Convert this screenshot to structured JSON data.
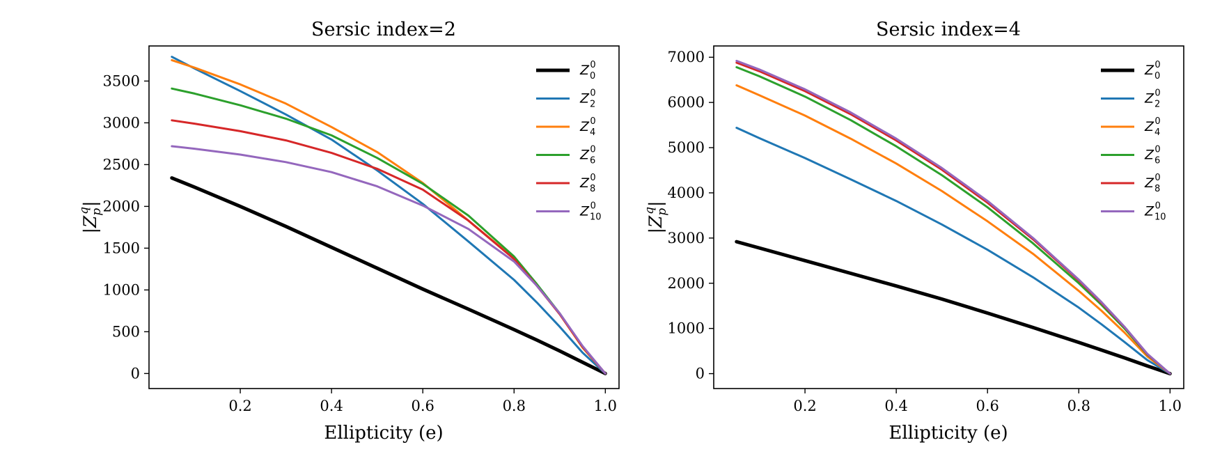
{
  "chart_data": [
    {
      "type": "line",
      "title": "Sersic index=2",
      "xlabel": "Ellipticity (e)",
      "ylabel": {
        "pre": "|Z",
        "sub": "p",
        "sup": "q",
        "post": "|"
      },
      "xlim": [
        0.0,
        1.03
      ],
      "ylim": [
        -180,
        3920
      ],
      "xticks": [
        0.2,
        0.4,
        0.6,
        0.8,
        1.0
      ],
      "xtick_labels": [
        "0.2",
        "0.4",
        "0.6",
        "0.8",
        "1.0"
      ],
      "yticks": [
        0,
        500,
        1000,
        1500,
        2000,
        2500,
        3000,
        3500
      ],
      "ytick_labels": [
        "0",
        "500",
        "1000",
        "1500",
        "2000",
        "2500",
        "3000",
        "3500"
      ],
      "legend_position": "upper-right",
      "x": [
        0.05,
        0.1,
        0.2,
        0.3,
        0.4,
        0.5,
        0.6,
        0.7,
        0.8,
        0.85,
        0.9,
        0.95,
        1.0
      ],
      "series": [
        {
          "name": "Z_0^0",
          "sym": "Z",
          "sub": "0",
          "sup": "0",
          "color": "#000000",
          "width": "thick",
          "values": [
            2340,
            2230,
            2000,
            1760,
            1510,
            1260,
            1010,
            770,
            525,
            400,
            270,
            135,
            0
          ]
        },
        {
          "name": "Z_2^0",
          "sym": "Z",
          "sub": "2",
          "sup": "0",
          "color": "#1f77b4",
          "width": "normal",
          "values": [
            3790,
            3650,
            3380,
            3100,
            2800,
            2430,
            2030,
            1580,
            1120,
            850,
            560,
            250,
            0
          ]
        },
        {
          "name": "Z_4^0",
          "sym": "Z",
          "sub": "4",
          "sup": "0",
          "color": "#ff7f0e",
          "width": "normal",
          "values": [
            3750,
            3660,
            3460,
            3230,
            2950,
            2650,
            2280,
            1830,
            1380,
            1060,
            710,
            310,
            0
          ]
        },
        {
          "name": "Z_6^0",
          "sym": "Z",
          "sub": "6",
          "sup": "0",
          "color": "#2ca02c",
          "width": "normal",
          "values": [
            3410,
            3350,
            3210,
            3050,
            2850,
            2580,
            2270,
            1890,
            1400,
            1070,
            720,
            320,
            0
          ]
        },
        {
          "name": "Z_8^0",
          "sym": "Z",
          "sub": "8",
          "sup": "0",
          "color": "#d62728",
          "width": "normal",
          "values": [
            3030,
            2990,
            2900,
            2790,
            2640,
            2450,
            2200,
            1830,
            1370,
            1050,
            710,
            320,
            0
          ]
        },
        {
          "name": "Z_10^0",
          "sym": "Z",
          "sub": "10",
          "sup": "0",
          "color": "#9467bd",
          "width": "normal",
          "values": [
            2720,
            2690,
            2620,
            2530,
            2410,
            2240,
            2010,
            1730,
            1340,
            1050,
            720,
            330,
            0
          ]
        }
      ]
    },
    {
      "type": "line",
      "title": "Sersic index=4",
      "xlabel": "Ellipticity (e)",
      "ylabel": {
        "pre": "|Z",
        "sub": "p",
        "sup": "q",
        "post": "|"
      },
      "xlim": [
        0.0,
        1.03
      ],
      "ylim": [
        -330,
        7250
      ],
      "xticks": [
        0.2,
        0.4,
        0.6,
        0.8,
        1.0
      ],
      "xtick_labels": [
        "0.2",
        "0.4",
        "0.6",
        "0.8",
        "1.0"
      ],
      "yticks": [
        0,
        1000,
        2000,
        3000,
        4000,
        5000,
        6000,
        7000
      ],
      "ytick_labels": [
        "0",
        "1000",
        "2000",
        "3000",
        "4000",
        "5000",
        "6000",
        "7000"
      ],
      "legend_position": "upper-right",
      "x": [
        0.05,
        0.1,
        0.2,
        0.3,
        0.4,
        0.5,
        0.6,
        0.7,
        0.8,
        0.85,
        0.9,
        0.95,
        1.0
      ],
      "series": [
        {
          "name": "Z_0^0",
          "sym": "Z",
          "sub": "0",
          "sup": "0",
          "color": "#000000",
          "width": "thick",
          "values": [
            2920,
            2780,
            2500,
            2220,
            1940,
            1650,
            1340,
            1020,
            690,
            520,
            350,
            170,
            0
          ]
        },
        {
          "name": "Z_2^0",
          "sym": "Z",
          "sub": "2",
          "sup": "0",
          "color": "#1f77b4",
          "width": "normal",
          "values": [
            5440,
            5210,
            4770,
            4300,
            3820,
            3300,
            2740,
            2130,
            1460,
            1090,
            700,
            300,
            0
          ]
        },
        {
          "name": "Z_4^0",
          "sym": "Z",
          "sub": "4",
          "sup": "0",
          "color": "#ff7f0e",
          "width": "normal",
          "values": [
            6380,
            6160,
            5710,
            5200,
            4650,
            4040,
            3370,
            2650,
            1830,
            1390,
            910,
            380,
            0
          ]
        },
        {
          "name": "Z_6^0",
          "sym": "Z",
          "sub": "6",
          "sup": "0",
          "color": "#2ca02c",
          "width": "normal",
          "values": [
            6780,
            6580,
            6130,
            5610,
            5030,
            4390,
            3680,
            2880,
            2000,
            1520,
            1000,
            420,
            0
          ]
        },
        {
          "name": "Z_8^0",
          "sym": "Z",
          "sub": "8",
          "sup": "0",
          "color": "#d62728",
          "width": "normal",
          "values": [
            6880,
            6690,
            6250,
            5740,
            5160,
            4510,
            3780,
            2970,
            2060,
            1560,
            1030,
            430,
            0
          ]
        },
        {
          "name": "Z_10^0",
          "sym": "Z",
          "sub": "10",
          "sup": "0",
          "color": "#9467bd",
          "width": "normal",
          "values": [
            6920,
            6730,
            6290,
            5780,
            5200,
            4550,
            3820,
            3000,
            2080,
            1580,
            1040,
            440,
            0
          ]
        }
      ]
    }
  ]
}
